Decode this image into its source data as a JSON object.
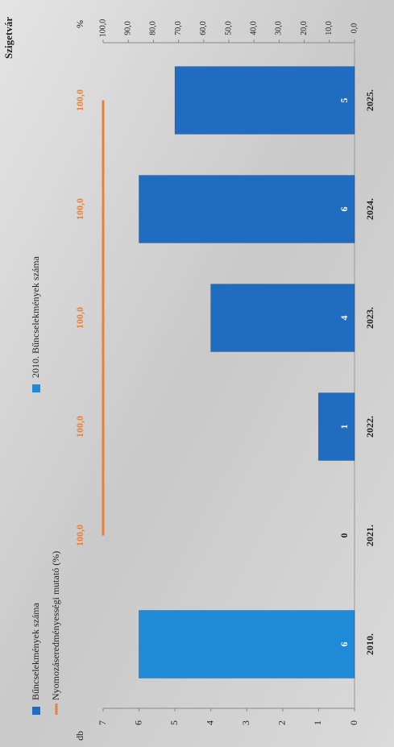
{
  "chart_data": {
    "type": "bar",
    "title": "Szigetvár",
    "y_label": "db",
    "y2_label": "%",
    "categories": [
      "2010.",
      "2021.",
      "2022.",
      "2023.",
      "2024.",
      "2025."
    ],
    "series": [
      {
        "name": "Bűncselekmények száma",
        "color": "#1f6cc0",
        "values": [
          null,
          0,
          1,
          4,
          6,
          5
        ]
      },
      {
        "name": "2010. Bűncselekmények száma",
        "color": "#1e8ad8",
        "values": [
          6,
          null,
          null,
          null,
          null,
          null
        ]
      },
      {
        "name": "Nyomozáseredményességi mutató (%)",
        "type": "line",
        "axis": "y2",
        "color": "#e8803a",
        "values": [
          null,
          100,
          100,
          100,
          100,
          100
        ],
        "value_labels": [
          null,
          "100,0",
          "100,0",
          "100,0",
          "100,0",
          "100,0"
        ]
      }
    ],
    "ylim": [
      0,
      7
    ],
    "yticks": [
      0,
      1,
      2,
      3,
      4,
      5,
      6,
      7
    ],
    "y2lim": [
      0,
      100
    ],
    "y2ticks": [
      {
        "value": 0,
        "label": "0,0"
      },
      {
        "value": 10,
        "label": "10,0"
      },
      {
        "value": 20,
        "label": "20,0"
      },
      {
        "value": 30,
        "label": "30,0"
      },
      {
        "value": 40,
        "label": "40,0"
      },
      {
        "value": 50,
        "label": "50,0"
      },
      {
        "value": 60,
        "label": "60,0"
      },
      {
        "value": 70,
        "label": "70,0"
      },
      {
        "value": 80,
        "label": "80,0"
      },
      {
        "value": 90,
        "label": "90,0"
      },
      {
        "value": 100,
        "label": "100,0"
      }
    ],
    "legend": "top",
    "grid": false
  }
}
